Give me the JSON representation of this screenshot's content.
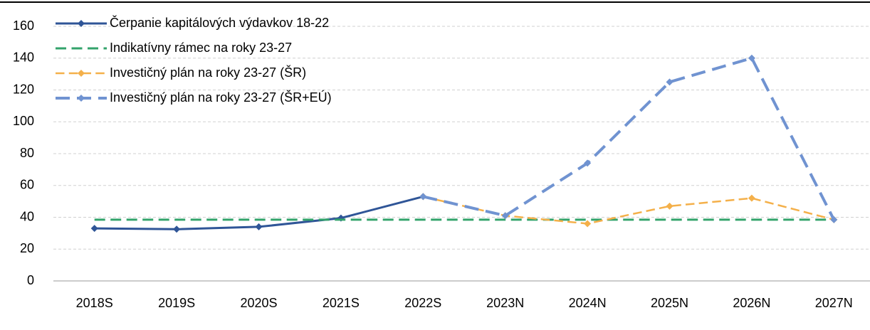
{
  "chart_data": {
    "type": "line",
    "categories": [
      "2018S",
      "2019S",
      "2020S",
      "2021S",
      "2022S",
      "2023N",
      "2024N",
      "2025N",
      "2026N",
      "2027N"
    ],
    "series": [
      {
        "name": "Čerpanie kapitálových výdavkov 18-22",
        "color": "#2f5597",
        "style": "solid",
        "marker": "diamond",
        "line_width": 3,
        "values": [
          33,
          32.5,
          34,
          39.5,
          53,
          null,
          null,
          null,
          null,
          null
        ]
      },
      {
        "name": "Indikatívny rámec na roky 23-27",
        "color": "#33a36b",
        "style": "dashed",
        "marker": "none",
        "line_width": 3,
        "values": [
          38.5,
          38.5,
          38.5,
          38.5,
          38.5,
          38.5,
          38.5,
          38.5,
          38.5,
          38.5
        ]
      },
      {
        "name": "Investičný plán na roky 23-27 (ŠR)",
        "color": "#f4b04a",
        "style": "dashed",
        "marker": "diamond",
        "line_width": 2.5,
        "values": [
          null,
          null,
          null,
          null,
          53,
          41,
          36,
          47,
          52,
          38.5
        ]
      },
      {
        "name": "Investičný plán na roky 23-27 (ŠR+EÚ)",
        "color": "#7093d1",
        "style": "dashed",
        "marker": "diamond",
        "line_width": 4,
        "values": [
          null,
          null,
          null,
          null,
          53,
          41,
          74,
          125,
          140,
          38.5
        ]
      }
    ],
    "ylim": [
      0,
      160
    ],
    "yticks": [
      0,
      20,
      40,
      60,
      80,
      100,
      120,
      140,
      160
    ],
    "grid": true,
    "legend": "upper left"
  }
}
